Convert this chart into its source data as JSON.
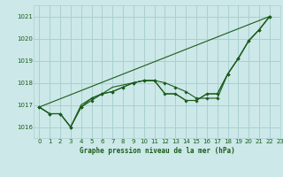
{
  "title": "Graphe pression niveau de la mer (hPa)",
  "bg_color": "#cce8e8",
  "grid_color": "#aad0d0",
  "line_color": "#1a5c1a",
  "xlim": [
    -0.5,
    23
  ],
  "ylim": [
    1015.5,
    1021.5
  ],
  "yticks": [
    1016,
    1017,
    1018,
    1019,
    1020,
    1021
  ],
  "xticks": [
    0,
    1,
    2,
    3,
    4,
    5,
    6,
    7,
    8,
    9,
    10,
    11,
    12,
    13,
    14,
    15,
    16,
    17,
    18,
    19,
    20,
    21,
    22,
    23
  ],
  "series_no_marker": [
    [
      0,
      22
    ],
    [
      1016.9,
      1021.0
    ]
  ],
  "series_with_markers": [
    {
      "x": [
        0,
        1,
        2,
        3,
        4,
        5,
        6,
        7,
        8,
        9,
        10,
        11,
        12,
        13,
        14,
        15,
        16,
        17,
        18,
        19,
        20,
        21,
        22
      ],
      "y": [
        1016.9,
        1016.6,
        1016.6,
        1016.0,
        1016.9,
        1017.3,
        1017.5,
        1017.6,
        1017.8,
        1018.0,
        1018.1,
        1018.1,
        1018.0,
        1017.8,
        1017.6,
        1017.3,
        1017.3,
        1017.3,
        1018.4,
        1019.1,
        1019.9,
        1020.4,
        1021.0
      ],
      "markers": true
    },
    {
      "x": [
        0,
        1,
        2,
        3,
        4,
        5,
        6,
        7,
        8,
        9,
        10,
        11,
        12,
        13,
        14,
        15,
        16,
        17,
        18,
        19,
        20,
        21,
        22
      ],
      "y": [
        1016.9,
        1016.6,
        1016.6,
        1016.0,
        1016.9,
        1017.2,
        1017.5,
        1017.6,
        1017.8,
        1018.0,
        1018.1,
        1018.1,
        1017.5,
        1017.5,
        1017.2,
        1017.2,
        1017.5,
        1017.5,
        1018.4,
        1019.1,
        1019.9,
        1020.4,
        1021.0
      ],
      "markers": true
    },
    {
      "x": [
        0,
        1,
        2,
        3,
        4,
        5,
        6,
        7,
        8,
        9,
        10,
        11,
        12,
        13,
        14,
        15,
        16,
        17,
        18,
        19,
        20,
        21,
        22
      ],
      "y": [
        1016.9,
        1016.6,
        1016.6,
        1016.0,
        1017.0,
        1017.3,
        1017.5,
        1017.8,
        1017.9,
        1018.0,
        1018.1,
        1018.1,
        1017.5,
        1017.5,
        1017.2,
        1017.2,
        1017.5,
        1017.5,
        1018.4,
        1019.1,
        1019.9,
        1020.4,
        1021.0
      ],
      "markers": false
    }
  ]
}
